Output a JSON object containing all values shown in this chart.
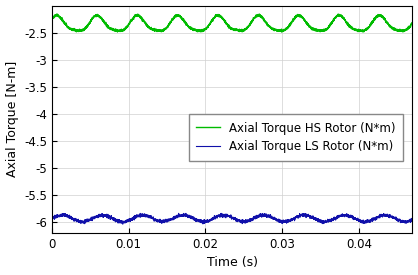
{
  "title": "",
  "xlabel": "Time (s)",
  "ylabel": "Axial Torque [N-m]",
  "xlim": [
    0,
    0.047
  ],
  "ylim": [
    -6.2,
    -2.0
  ],
  "yticks": [
    -2.5,
    -3.0,
    -3.5,
    -4.0,
    -4.5,
    -5.0,
    -5.5,
    -6.0
  ],
  "xticks": [
    0,
    0.01,
    0.02,
    0.03,
    0.04
  ],
  "LS_color": "#1010aa",
  "HS_color": "#00bb00",
  "LS_label": "Axial Torque LS Rotor (N*m)",
  "HS_label": "Axial Torque HS Rotor (N*m)",
  "LS_mean": -5.93,
  "LS_amp": 0.06,
  "LS_freq": 190,
  "LS_noise_amp": 0.015,
  "HS_mean": -2.35,
  "HS_amp": 0.14,
  "HS_freq": 190,
  "HS_noise_amp": 0.01,
  "n_points": 3000,
  "background_color": "#ffffff",
  "grid_color": "#d0d0d0",
  "legend_fontsize": 8.5,
  "axis_fontsize": 9,
  "tick_fontsize": 8.5
}
